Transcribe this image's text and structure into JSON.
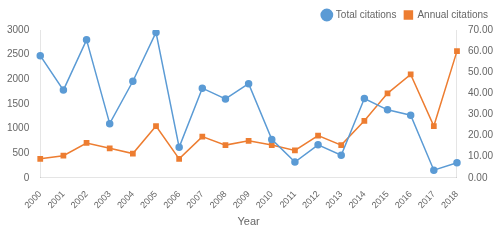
{
  "chart_data": {
    "type": "line",
    "x_label": "Year",
    "categories": [
      "2000",
      "2001",
      "2002",
      "2003",
      "2004",
      "2005",
      "2006",
      "2007",
      "2008",
      "2009",
      "2010",
      "2011",
      "2012",
      "2013",
      "2014",
      "2015",
      "2016",
      "2017",
      "2018"
    ],
    "series": [
      {
        "name": "Total citations",
        "color": "#5b9bd5",
        "marker": "circle",
        "values": [
          2480,
          1780,
          2800,
          1100,
          1960,
          2950,
          620,
          1820,
          1600,
          1910,
          780,
          320,
          670,
          460,
          1610,
          1380,
          1270,
          155,
          305
        ]
      },
      {
        "name": "Annual citations",
        "color": "#ed7d31",
        "marker": "square",
        "axis": "y2",
        "values": [
          9.0,
          10.5,
          16.5,
          14.0,
          11.5,
          24.5,
          9.0,
          19.5,
          15.5,
          17.5,
          15.5,
          13.0,
          20.0,
          15.5,
          27.0,
          40.0,
          49.0,
          24.5,
          60.0
        ]
      }
    ],
    "ylim": [
      0,
      3000
    ],
    "yticks": [
      0,
      500,
      1000,
      1500,
      2000,
      2500,
      3000
    ],
    "y2lim": [
      0.0,
      70.0
    ],
    "y2ticks": [
      {
        "value": 0.0,
        "label": "0.00"
      },
      {
        "value": 10.0,
        "label": "10.00"
      },
      {
        "value": 20.0,
        "label": "20.00"
      },
      {
        "value": 30.0,
        "label": "30.00"
      },
      {
        "value": 40.0,
        "label": "40.00"
      },
      {
        "value": 50.0,
        "label": "50.00"
      },
      {
        "value": 60.0,
        "label": "60.00"
      },
      {
        "value": 70.0,
        "label": "70.00"
      }
    ],
    "grid": false,
    "legend": "upper right"
  }
}
